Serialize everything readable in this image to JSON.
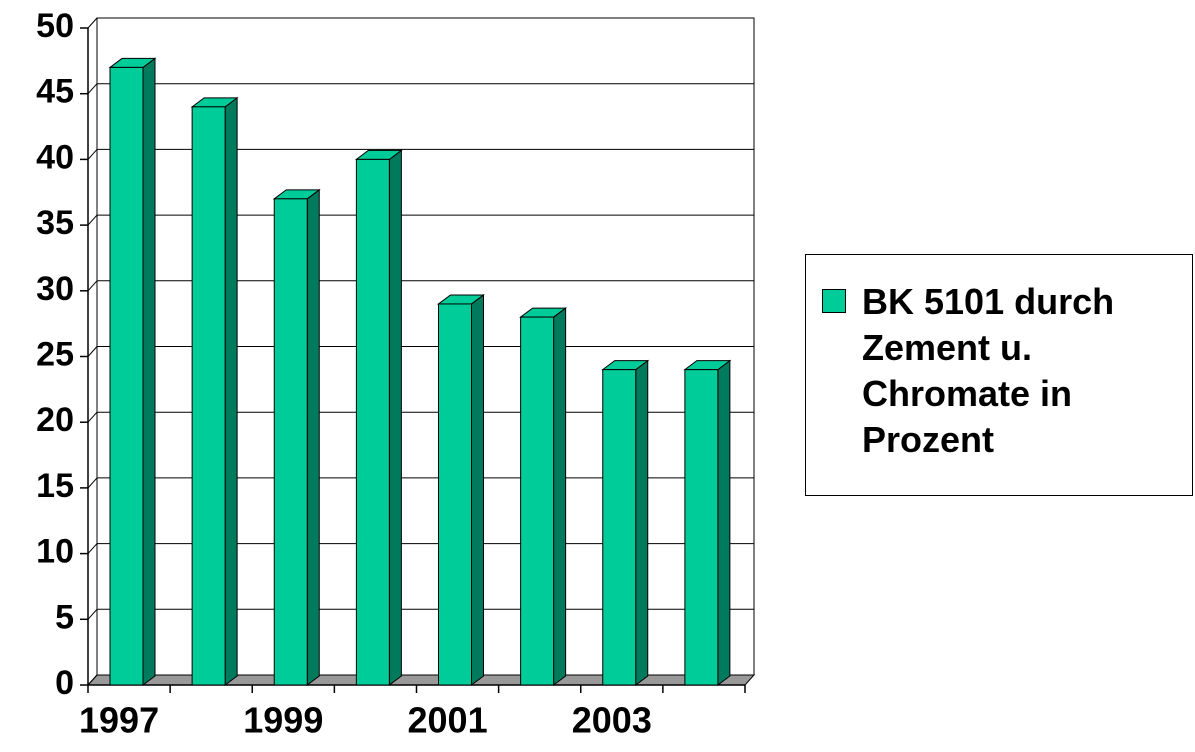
{
  "chart_data": {
    "type": "bar",
    "three_d": true,
    "categories": [
      "1997",
      null,
      "1999",
      null,
      "2001",
      null,
      "2003",
      null
    ],
    "series": [
      {
        "name": "BK 5101 durch Zement u. Chromate in Prozent",
        "color": "#00cc99",
        "values": [
          47,
          44,
          37,
          40,
          29,
          28,
          24,
          24
        ]
      }
    ],
    "ylim": [
      0,
      50
    ],
    "yticks": [
      0,
      5,
      10,
      15,
      20,
      25,
      30,
      35,
      40,
      45,
      50
    ],
    "grid": true,
    "legend": "right"
  }
}
